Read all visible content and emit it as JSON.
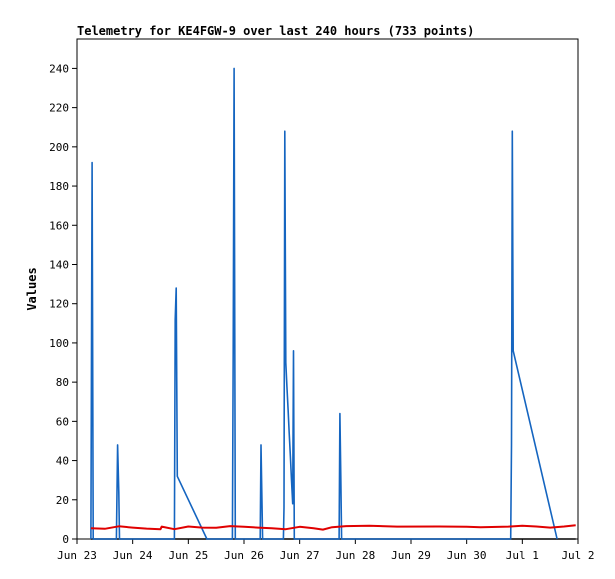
{
  "chart_data": {
    "type": "line",
    "title": "Telemetry for KE4FGW-9 over last 240 hours (733 points)",
    "xlabel": "",
    "ylabel": "Values",
    "ylim": [
      0,
      255
    ],
    "y_ticks": [
      0,
      20,
      40,
      60,
      80,
      100,
      120,
      140,
      160,
      180,
      200,
      220,
      240
    ],
    "xlim": [
      "2024-06-23T00:00",
      "2024-07-02T00:00"
    ],
    "x_ticks": [
      {
        "t": "2024-06-23T00:00",
        "label": "Jun 23"
      },
      {
        "t": "2024-06-24T00:00",
        "label": "Jun 24"
      },
      {
        "t": "2024-06-25T00:00",
        "label": "Jun 25"
      },
      {
        "t": "2024-06-26T00:00",
        "label": "Jun 26"
      },
      {
        "t": "2024-06-27T00:00",
        "label": "Jun 27"
      },
      {
        "t": "2024-06-28T00:00",
        "label": "Jun 28"
      },
      {
        "t": "2024-06-29T00:00",
        "label": "Jun 29"
      },
      {
        "t": "2024-06-30T00:00",
        "label": "Jun 30"
      },
      {
        "t": "2024-07-01T00:00",
        "label": "Jul 1"
      },
      {
        "t": "2024-07-02T00:00",
        "label": "Jul 2"
      }
    ],
    "grid": false,
    "legend": "none",
    "series": [
      {
        "color": "#000000",
        "points": [
          [
            "2024-06-23T06:00",
            0
          ],
          [
            "2024-07-01T23:00",
            0
          ]
        ]
      },
      {
        "color": "#1565c0",
        "points": [
          [
            "2024-06-23T06:00",
            0
          ],
          [
            "2024-06-23T06:30",
            192
          ],
          [
            "2024-06-23T07:00",
            0
          ],
          [
            "2024-06-23T17:00",
            0
          ],
          [
            "2024-06-23T17:30",
            48
          ],
          [
            "2024-06-23T18:00",
            24
          ],
          [
            "2024-06-23T18:20",
            0
          ],
          [
            "2024-06-24T18:00",
            0
          ],
          [
            "2024-06-24T18:20",
            112
          ],
          [
            "2024-06-24T18:45",
            128
          ],
          [
            "2024-06-24T19:15",
            32
          ],
          [
            "2024-06-25T08:00",
            0
          ],
          [
            "2024-06-25T19:00",
            0
          ],
          [
            "2024-06-25T19:20",
            96
          ],
          [
            "2024-06-25T19:45",
            240
          ],
          [
            "2024-06-25T20:15",
            0
          ],
          [
            "2024-06-26T07:00",
            0
          ],
          [
            "2024-06-26T07:20",
            48
          ],
          [
            "2024-06-26T07:40",
            24
          ],
          [
            "2024-06-26T08:00",
            0
          ],
          [
            "2024-06-26T17:00",
            0
          ],
          [
            "2024-06-26T17:15",
            16
          ],
          [
            "2024-06-26T17:35",
            208
          ],
          [
            "2024-06-26T18:00",
            90
          ],
          [
            "2024-06-26T18:30",
            78
          ],
          [
            "2024-06-26T19:00",
            66
          ],
          [
            "2024-06-26T19:30",
            54
          ],
          [
            "2024-06-26T20:00",
            42
          ],
          [
            "2024-06-26T20:30",
            30
          ],
          [
            "2024-06-26T21:00",
            18
          ],
          [
            "2024-06-26T21:20",
            96
          ],
          [
            "2024-06-26T21:40",
            0
          ],
          [
            "2024-06-27T17:00",
            0
          ],
          [
            "2024-06-27T17:20",
            64
          ],
          [
            "2024-06-27T17:45",
            32
          ],
          [
            "2024-06-27T18:05",
            0
          ],
          [
            "2024-06-30T19:00",
            0
          ],
          [
            "2024-06-30T19:20",
            48
          ],
          [
            "2024-06-30T19:40",
            208
          ],
          [
            "2024-06-30T20:05",
            96
          ],
          [
            "2024-07-01T15:00",
            0
          ]
        ]
      },
      {
        "color": "#e00000",
        "points": [
          [
            "2024-06-23T06:00",
            5.5
          ],
          [
            "2024-06-23T12:00",
            5.2
          ],
          [
            "2024-06-23T18:00",
            6.5
          ],
          [
            "2024-06-24T00:00",
            5.8
          ],
          [
            "2024-06-24T06:00",
            5.3
          ],
          [
            "2024-06-24T12:00",
            5.0
          ],
          [
            "2024-06-24T12:30",
            6.3
          ],
          [
            "2024-06-24T18:00",
            5.0
          ],
          [
            "2024-06-25T00:00",
            6.4
          ],
          [
            "2024-06-25T06:00",
            5.8
          ],
          [
            "2024-06-25T12:00",
            5.7
          ],
          [
            "2024-06-25T18:00",
            6.6
          ],
          [
            "2024-06-26T00:00",
            6.2
          ],
          [
            "2024-06-26T06:00",
            5.8
          ],
          [
            "2024-06-26T12:00",
            5.5
          ],
          [
            "2024-06-26T18:00",
            5.0
          ],
          [
            "2024-06-27T00:00",
            6.2
          ],
          [
            "2024-06-27T06:00",
            5.5
          ],
          [
            "2024-06-27T10:00",
            4.8
          ],
          [
            "2024-06-27T14:00",
            6.0
          ],
          [
            "2024-06-27T20:00",
            6.6
          ],
          [
            "2024-06-28T06:00",
            6.8
          ],
          [
            "2024-06-28T18:00",
            6.3
          ],
          [
            "2024-06-29T12:00",
            6.4
          ],
          [
            "2024-06-30T00:00",
            6.2
          ],
          [
            "2024-06-30T06:00",
            6.0
          ],
          [
            "2024-06-30T18:00",
            6.3
          ],
          [
            "2024-07-01T00:00",
            6.8
          ],
          [
            "2024-07-01T06:00",
            6.4
          ],
          [
            "2024-07-01T12:00",
            5.8
          ],
          [
            "2024-07-01T18:00",
            6.4
          ],
          [
            "2024-07-01T23:00",
            7.0
          ]
        ]
      }
    ]
  }
}
